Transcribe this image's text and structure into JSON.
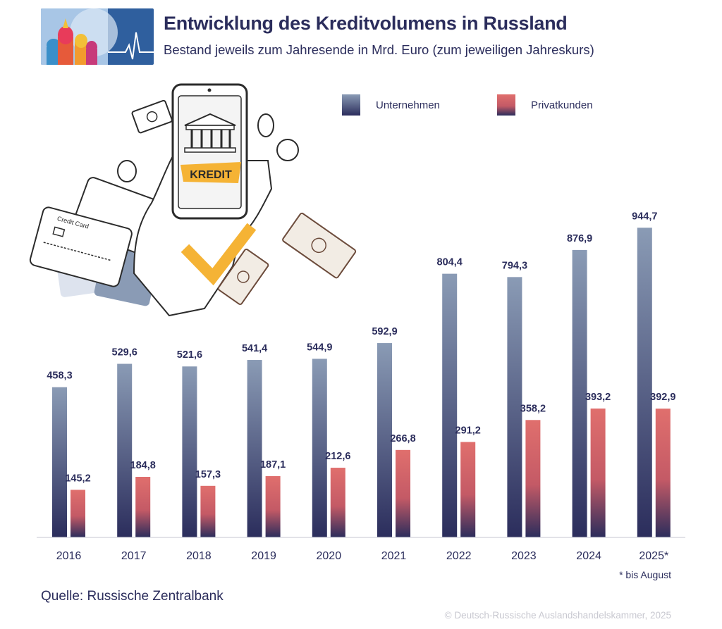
{
  "header": {
    "title": "Entwicklung des Kreditvolumens in Russland",
    "subtitle": "Bestand jeweils zum Jahresende in Mrd. Euro (zum jeweiligen Jahreskurs)"
  },
  "illustration": {
    "phone_label": "KREDIT",
    "card_label": "Credit Card"
  },
  "colors": {
    "unternehmen_top": "#8a9bb5",
    "unternehmen_bottom": "#2b2d5c",
    "privat_top": "#e06f6d",
    "privat_bottom": "#2b2d5c",
    "text": "#2b2d5c",
    "accent_yellow": "#f5b335"
  },
  "chart_data": {
    "type": "bar",
    "categories": [
      "2016",
      "2017",
      "2018",
      "2019",
      "2020",
      "2021",
      "2022",
      "2023",
      "2024",
      "2025*"
    ],
    "series": [
      {
        "name": "Unternehmen",
        "values": [
          458.3,
          529.6,
          521.6,
          541.4,
          544.9,
          592.9,
          804.4,
          794.3,
          876.9,
          944.7
        ],
        "labels": [
          "458,3",
          "529,6",
          "521,6",
          "541,4",
          "544,9",
          "592,9",
          "804,4",
          "794,3",
          "876,9",
          "944,7"
        ]
      },
      {
        "name": "Privatkunden",
        "values": [
          145.2,
          184.8,
          157.3,
          187.1,
          212.6,
          266.8,
          291.2,
          358.2,
          393.2,
          392.9
        ],
        "labels": [
          "145,2",
          "184,8",
          "157,3",
          "187,1",
          "212,6",
          "266,8",
          "291,2",
          "358,2",
          "393,2",
          "392,9"
        ]
      }
    ],
    "ylim": [
      0,
      1000
    ],
    "grid": false,
    "legend_position": "top-right"
  },
  "footnote": "* bis August",
  "source": "Quelle: Russische Zentralbank",
  "copyright": "© Deutsch-Russische Auslandshandelskammer, 2025"
}
